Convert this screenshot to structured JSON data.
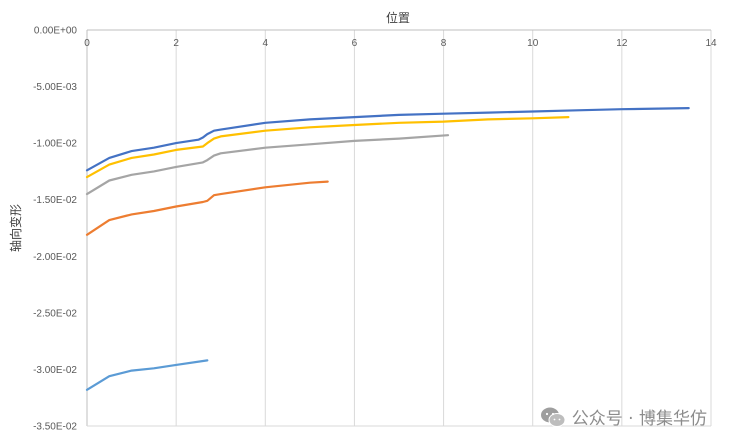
{
  "chart_data": {
    "type": "line",
    "xlabel": "位置",
    "ylabel": "轴向变形",
    "xlim": [
      0,
      14
    ],
    "ylim": [
      -0.035,
      0
    ],
    "xticks": [
      0,
      2,
      4,
      6,
      8,
      10,
      12,
      14
    ],
    "yticks": [
      0,
      -0.005,
      -0.01,
      -0.015,
      -0.02,
      -0.025,
      -0.03,
      -0.035
    ],
    "ytick_labels": [
      "0.00E+00",
      "-5.00E-03",
      "-1.00E-02",
      "-1.50E-02",
      "-2.00E-02",
      "-2.50E-02",
      "-3.00E-02",
      "-3.50E-02"
    ],
    "grid": "vertical",
    "legend": "none",
    "series": [
      {
        "color": "#4472C4",
        "x": [
          0,
          0.5,
          1.0,
          1.5,
          2.0,
          2.5,
          2.6,
          2.7,
          2.85,
          3.0,
          4.0,
          5.0,
          6.0,
          7.0,
          8.0,
          9.0,
          10.0,
          11.0,
          12.0,
          13.5
        ],
        "y": [
          -0.0124,
          -0.0113,
          -0.0107,
          -0.0104,
          -0.01,
          -0.0097,
          -0.0095,
          -0.0092,
          -0.0089,
          -0.0088,
          -0.0082,
          -0.0079,
          -0.0077,
          -0.0075,
          -0.0074,
          -0.0073,
          -0.0072,
          -0.0071,
          -0.007,
          -0.0069
        ]
      },
      {
        "color": "#FFC000",
        "x": [
          0,
          0.5,
          1.0,
          1.5,
          2.0,
          2.6,
          2.7,
          2.85,
          3.0,
          4.0,
          5.0,
          6.0,
          7.0,
          8.0,
          9.0,
          10.0,
          10.8
        ],
        "y": [
          -0.013,
          -0.0119,
          -0.0113,
          -0.011,
          -0.0106,
          -0.0103,
          -0.01,
          -0.0096,
          -0.0094,
          -0.0089,
          -0.0086,
          -0.0084,
          -0.0082,
          -0.0081,
          -0.0079,
          -0.0078,
          -0.0077
        ]
      },
      {
        "color": "#A5A5A5",
        "x": [
          0,
          0.5,
          1.0,
          1.5,
          2.0,
          2.6,
          2.7,
          2.85,
          3.0,
          4.0,
          5.0,
          6.0,
          7.0,
          8.1
        ],
        "y": [
          -0.0145,
          -0.0133,
          -0.0128,
          -0.0125,
          -0.0121,
          -0.0117,
          -0.0115,
          -0.0111,
          -0.0109,
          -0.0104,
          -0.0101,
          -0.0098,
          -0.0096,
          -0.0093
        ]
      },
      {
        "color": "#ED7D31",
        "x": [
          0,
          0.5,
          1.0,
          1.5,
          2.0,
          2.6,
          2.7,
          2.85,
          3.0,
          4.0,
          5.0,
          5.4
        ],
        "y": [
          -0.0181,
          -0.0168,
          -0.0163,
          -0.016,
          -0.0156,
          -0.0152,
          -0.0151,
          -0.0146,
          -0.0145,
          -0.0139,
          -0.0135,
          -0.0134
        ]
      },
      {
        "color": "#5B9BD5",
        "x": [
          0,
          0.5,
          1.0,
          1.5,
          2.0,
          2.7
        ],
        "y": [
          -0.0318,
          -0.0306,
          -0.0301,
          -0.0299,
          -0.0296,
          -0.0292
        ]
      }
    ]
  },
  "watermark": {
    "text": "公众号 · 博集华仿",
    "icon": "wechat-icon"
  }
}
